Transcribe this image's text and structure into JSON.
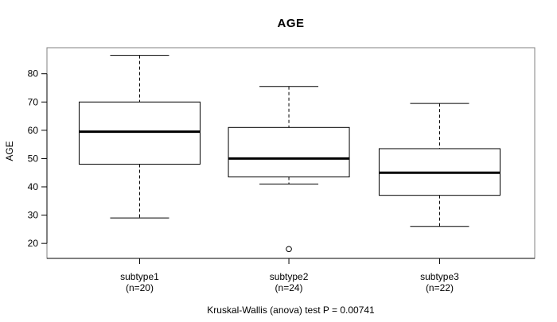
{
  "chart_data": {
    "type": "boxplot",
    "title": "AGE",
    "ylabel": "AGE",
    "xlabel": "",
    "caption": "Kruskal-Wallis (anova) test P = 0.00741",
    "y_axis": {
      "ticks": [
        20,
        30,
        40,
        50,
        60,
        70,
        80
      ],
      "range": [
        14.7,
        89.2
      ]
    },
    "grid": "off",
    "groups": [
      {
        "label": "subtype1",
        "n_label": "(n=20)",
        "n": 20,
        "stats": {
          "whisker_low": 29,
          "q1": 48,
          "median": 59.5,
          "q3": 70,
          "whisker_high": 86.5
        },
        "outliers": []
      },
      {
        "label": "subtype2",
        "n_label": "(n=24)",
        "n": 24,
        "stats": {
          "whisker_low": 41,
          "q1": 43.5,
          "median": 50,
          "q3": 61,
          "whisker_high": 75.5
        },
        "outliers": [
          18
        ]
      },
      {
        "label": "subtype3",
        "n_label": "(n=22)",
        "n": 22,
        "stats": {
          "whisker_low": 26,
          "q1": 37,
          "median": 45,
          "q3": 53.5,
          "whisker_high": 69.5
        },
        "outliers": []
      }
    ],
    "colors": {
      "background": "#ffffff",
      "frame": "#808080",
      "axis": "#000000",
      "box_stroke": "#000000",
      "box_fill": "#ffffff",
      "median": "#000000",
      "text": "#000000"
    }
  }
}
